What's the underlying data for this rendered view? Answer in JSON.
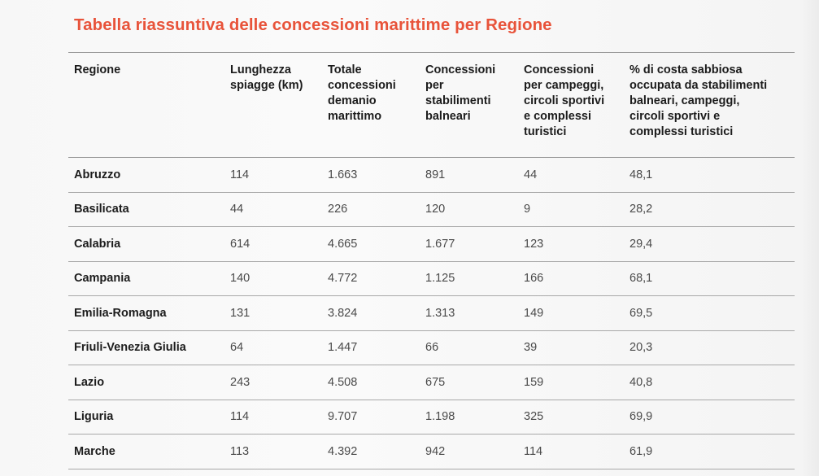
{
  "page": {
    "title": "Tabella riassuntiva delle concessioni marittime per Regione",
    "accent_color": "#e8533a"
  },
  "table": {
    "headers": [
      "Regione",
      "Lunghezza\nspiagge (km)",
      "Totale\nconcessioni\ndemanio\nmarittimo",
      "Concessioni\nper\nstabilimenti\nbalneari",
      "Concessioni\nper campeggi,\ncircoli sportivi\ne complessi\nturistici",
      "% di costa sabbiosa\noccupata da stabilimenti\nbalneari, campeggi,\ncircoli sportivi e\ncomplessi turistici"
    ],
    "rows": [
      [
        "Abruzzo",
        "114",
        "1.663",
        "891",
        "44",
        "48,1"
      ],
      [
        "Basilicata",
        "44",
        "226",
        "120",
        "9",
        "28,2"
      ],
      [
        "Calabria",
        "614",
        "4.665",
        "1.677",
        "123",
        "29,4"
      ],
      [
        "Campania",
        "140",
        "4.772",
        "1.125",
        "166",
        "68,1"
      ],
      [
        "Emilia-Romagna",
        "131",
        "3.824",
        "1.313",
        "149",
        "69,5"
      ],
      [
        "Friuli-Venezia Giulia",
        "64",
        "1.447",
        "66",
        "39",
        "20,3"
      ],
      [
        "Lazio",
        "243",
        "4.508",
        "675",
        "159",
        "40,8"
      ],
      [
        "Liguria",
        "114",
        "9.707",
        "1.198",
        "325",
        "69,9"
      ],
      [
        "Marche",
        "113",
        "4.392",
        "942",
        "114",
        "61,9"
      ]
    ]
  }
}
